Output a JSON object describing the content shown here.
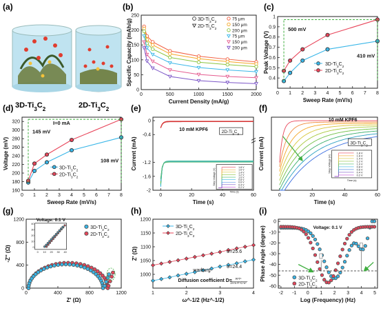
{
  "chart_data": [
    {
      "panel": "a",
      "type": "other",
      "labels": [
        "3D-Ti3C2",
        "2D-Ti3C2"
      ]
    },
    {
      "panel": "b",
      "type": "line",
      "xlabel": "Current Density (mA/g)",
      "ylabel": "Specific Capacity (mAh/g)",
      "xlim": [
        0,
        2000
      ],
      "ylim": [
        0,
        250
      ],
      "xticks": [
        0,
        500,
        1000,
        1500,
        2000
      ],
      "yticks": [
        0,
        50,
        100,
        150,
        200,
        250
      ],
      "legend_titles": [
        "3D-Ti3C2",
        "2D-Ti3C2"
      ],
      "x": [
        50,
        100,
        200,
        500,
        1000,
        1500,
        2000
      ],
      "series": [
        {
          "name": "75 μm",
          "group": "3D-Ti3C2",
          "color": "#f25d3d",
          "values": [
            212,
            180,
            160,
            130,
            112,
            102,
            93
          ]
        },
        {
          "name": "150 μm",
          "group": "3D-Ti3C2",
          "color": "#f5a623",
          "values": [
            205,
            168,
            150,
            120,
            104,
            94,
            86
          ]
        },
        {
          "name": "200 μm",
          "group": "3D-Ti3C2",
          "color": "#8ac43f",
          "values": [
            196,
            155,
            136,
            108,
            92,
            84,
            77
          ]
        },
        {
          "name": "75 μm",
          "group": "2D-Ti3C2",
          "color": "#38b6e8",
          "values": [
            180,
            140,
            118,
            90,
            74,
            66,
            60
          ]
        },
        {
          "name": "150 μm",
          "group": "2D-Ti3C2",
          "color": "#e45a8e",
          "values": [
            160,
            118,
            95,
            66,
            51,
            44,
            40
          ]
        },
        {
          "name": "200 μm",
          "group": "2D-Ti3C2",
          "color": "#7b55c7",
          "values": [
            140,
            96,
            72,
            44,
            30,
            24,
            20
          ]
        }
      ]
    },
    {
      "panel": "c",
      "type": "line",
      "xlabel": "Sweep Rate (mV/s)",
      "ylabel": "Peak Voltage (V)",
      "xlim": [
        0,
        8
      ],
      "ylim": [
        0.3,
        1.0
      ],
      "xticks": [
        0,
        1,
        2,
        3,
        4,
        5,
        6,
        7,
        8
      ],
      "yticks": [
        0.4,
        0.5,
        0.6,
        0.7,
        0.8,
        0.9,
        1.0
      ],
      "x": [
        0.5,
        1,
        2,
        4,
        8
      ],
      "series": [
        {
          "name": "3D-Ti3C2",
          "color": "#38b6e8",
          "values": [
            0.37,
            0.45,
            0.57,
            0.68,
            0.76
          ]
        },
        {
          "name": "2D-Ti3C2",
          "color": "#e8455a",
          "values": [
            0.47,
            0.57,
            0.68,
            0.82,
            0.97
          ]
        }
      ],
      "annotations": [
        "500 mV",
        "410 mV"
      ]
    },
    {
      "panel": "d",
      "type": "line",
      "xlabel": "Sweep Rate (mV/s)",
      "ylabel": "Voltage (mV)",
      "xlim": [
        0,
        8
      ],
      "ylim": [
        160,
        330
      ],
      "xticks": [
        0,
        1,
        2,
        3,
        4,
        5,
        6,
        7,
        8
      ],
      "yticks": [
        160,
        180,
        200,
        220,
        240,
        260,
        280,
        300,
        320
      ],
      "x": [
        0.5,
        1,
        2,
        4,
        8
      ],
      "series": [
        {
          "name": "3D-Ti3C2",
          "color": "#38b6e8",
          "values": [
            178,
            205,
            225,
            253,
            283
          ]
        },
        {
          "name": "2D-Ti3C2",
          "color": "#e8455a",
          "values": [
            182,
            222,
            243,
            277,
            325
          ]
        }
      ],
      "annotations": [
        "I=0 mA",
        "145 mV",
        "108 mV"
      ]
    },
    {
      "panel": "e",
      "type": "line",
      "xlabel": "Time (s)",
      "ylabel": "Current (mA)",
      "xlim": [
        -5,
        60
      ],
      "ylim": [
        -2.0,
        0.1
      ],
      "xticks": [
        0,
        20,
        40,
        60
      ],
      "yticks": [
        -2.0,
        -1.6,
        -1.2,
        -0.4,
        0.0
      ],
      "annotations": [
        "10 mM KPF6",
        "2D-Ti3C2"
      ],
      "inset": {
        "ylabel": "Step Voltage (V)",
        "xlabel": "Time (s)",
        "series": [
          "1.8 V",
          "1.6 V",
          "1.4 V",
          "1.2 V",
          "1.0 V",
          "0.8 V",
          "0.6 V",
          "0.4 V",
          "0.2 V"
        ]
      }
    },
    {
      "panel": "f",
      "type": "line",
      "xlabel": "Time (s)",
      "ylabel": "Current (mA)",
      "xlim": [
        -5,
        60
      ],
      "xticks": [
        0,
        20,
        40,
        60
      ],
      "annotations": [
        "10 mM KPF6",
        "3D-Ti3C2"
      ],
      "inset": {
        "ylabel": "Step Voltage (V)",
        "xlabel": "Time (s)",
        "series": [
          "1.8 V",
          "1.6 V",
          "1.4 V",
          "1.2 V",
          "1.0 V",
          "0.8 V",
          "0.6 V",
          "0.4 V",
          "0.2 V"
        ]
      }
    },
    {
      "panel": "g",
      "type": "scatter",
      "xlabel": "Z' (Ω)",
      "ylabel": "-Z'' (Ω)",
      "xlim": [
        0,
        1200
      ],
      "ylim": [
        0,
        1200
      ],
      "xticks": [
        0,
        400,
        800,
        1200
      ],
      "yticks": [
        0,
        400,
        800,
        1200
      ],
      "annotations": [
        "Voltage:  0.1 V"
      ],
      "series": [
        {
          "name": "3D-Ti3C2",
          "color": "#38b6e8"
        },
        {
          "name": "2D-Ti3C2",
          "color": "#e8455a"
        }
      ],
      "inset": {
        "xticks": [
          0,
          10,
          20,
          30,
          40
        ],
        "yticks": [
          0,
          10,
          20,
          30,
          40
        ]
      }
    },
    {
      "panel": "h",
      "type": "scatter",
      "xlabel": "ω^-1/2 (Hz^-1/2)",
      "ylabel": "Z' (Ω)",
      "xlim": [
        1,
        4
      ],
      "ylim": [
        950,
        1200
      ],
      "xticks": [
        1,
        2,
        3,
        4
      ],
      "yticks": [
        1000,
        1050,
        1100,
        1150,
        1200
      ],
      "series": [
        {
          "name": "3D-Ti3C2",
          "color": "#38b6e8",
          "x": [
            1.0,
            1.25,
            1.5,
            1.75,
            2.0,
            2.25,
            2.5,
            2.75,
            3.0,
            3.25,
            3.5,
            3.75,
            4.0
          ],
          "values": [
            977,
            983,
            989,
            996,
            1002,
            1008,
            1015,
            1021,
            1028,
            1034,
            1040,
            1047,
            1053
          ]
        },
        {
          "name": "2D-Ti3C2",
          "color": "#e8455a",
          "x": [
            1.0,
            1.25,
            1.5,
            1.75,
            2.0,
            2.25,
            2.5,
            2.75,
            3.0,
            3.25,
            3.5,
            3.75,
            4.0
          ],
          "values": [
            1033,
            1039,
            1045,
            1051,
            1057,
            1063,
            1069,
            1075,
            1081,
            1088,
            1094,
            1100,
            1106
          ]
        }
      ],
      "annotations": [
        "σ=25.6",
        "σ=24.4",
        "warburg",
        "Diffusion coefficient  D=",
        "R²T²",
        "2A²n⁴F⁴C²σ²"
      ]
    },
    {
      "panel": "i",
      "type": "scatter",
      "xlabel": "Log (Frequency) (Hz)",
      "ylabel": "Phase Angle (degree)",
      "xlim": [
        -2.2,
        5.2
      ],
      "ylim": [
        -62,
        2
      ],
      "xticks": [
        -2,
        -1,
        0,
        1,
        2,
        3,
        4,
        5
      ],
      "yticks": [
        -60,
        -50,
        -40,
        -30,
        -20,
        -10,
        0
      ],
      "annotations": [
        "Voltage:  0.1 V"
      ],
      "series": [
        {
          "name": "3D-Ti3C2",
          "color": "#38b6e8"
        },
        {
          "name": "2D-Ti3C2",
          "color": "#e8455a"
        }
      ]
    }
  ],
  "labels": {
    "a": "(a)",
    "b": "(b)",
    "c": "(c)",
    "d": "(d)",
    "e": "(e)",
    "f": "(f)",
    "g": "(g)",
    "h": "(h)",
    "i": "(i)"
  },
  "colors": {
    "blue": "#38b6e8",
    "red": "#e8455a",
    "green_dash": "#3fae3f"
  }
}
